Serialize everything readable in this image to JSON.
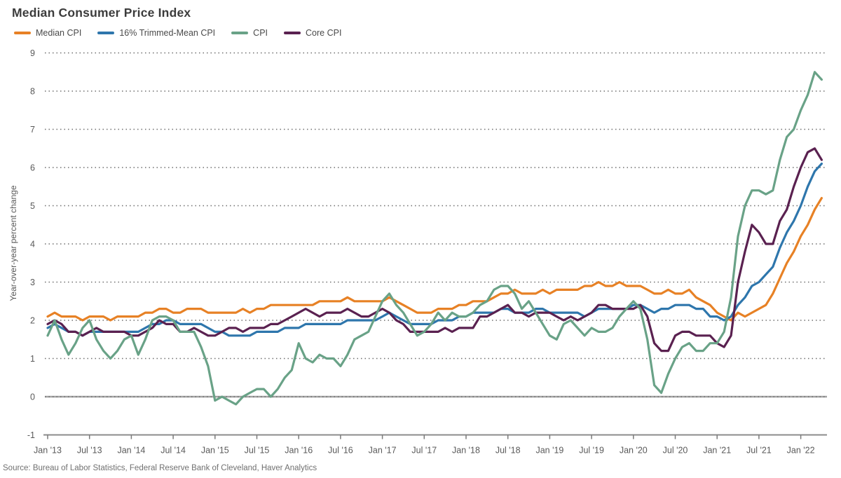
{
  "page": {
    "source": "Source: Bureau of Labor Statistics, Federal Reserve Bank of Cleveland, Haver Analytics"
  },
  "chart_data": {
    "type": "line",
    "title": "Median Consumer Price Index",
    "ylabel": "Year-over-year percent change",
    "xlabel": "",
    "ylim": [
      -1,
      9
    ],
    "y_ticks": [
      -1,
      0,
      1,
      2,
      3,
      4,
      5,
      6,
      7,
      8,
      9
    ],
    "grid": "dotted-horizontal",
    "zero_line": true,
    "legend_position": "top-left",
    "x_unit": "month",
    "x_range": [
      "Jan 2013",
      "Apr 2022"
    ],
    "x_tick_every_n_points": 6,
    "x_tick_labels": [
      "Jan '13",
      "Jul '13",
      "Jan '14",
      "Jul '14",
      "Jan '15",
      "Jul '15",
      "Jan '16",
      "Jul '16",
      "Jan '17",
      "Jul '17",
      "Jan '18",
      "Jul '18",
      "Jan '19",
      "Jul '19",
      "Jan '20",
      "Jul '20",
      "Jan '21",
      "Jul '21",
      "Jan '22"
    ],
    "colors": {
      "title_text": "#3c3c3c",
      "axis_text": "#595959",
      "grid_dots": "#6f6f6f",
      "zero_line": "#a2a2a2",
      "axis_line": "#8c8c8c",
      "source_text": "#707070"
    },
    "draw_order": [
      0,
      1,
      3,
      2
    ],
    "series": [
      {
        "name": "Median CPI",
        "color": "#E78125",
        "values": [
          2.1,
          2.2,
          2.1,
          2.1,
          2.1,
          2.0,
          2.1,
          2.1,
          2.1,
          2.0,
          2.1,
          2.1,
          2.1,
          2.1,
          2.2,
          2.2,
          2.3,
          2.3,
          2.2,
          2.2,
          2.3,
          2.3,
          2.3,
          2.2,
          2.2,
          2.2,
          2.2,
          2.2,
          2.3,
          2.2,
          2.3,
          2.3,
          2.4,
          2.4,
          2.4,
          2.4,
          2.4,
          2.4,
          2.4,
          2.5,
          2.5,
          2.5,
          2.5,
          2.6,
          2.5,
          2.5,
          2.5,
          2.5,
          2.5,
          2.6,
          2.5,
          2.4,
          2.3,
          2.2,
          2.2,
          2.2,
          2.3,
          2.3,
          2.3,
          2.4,
          2.4,
          2.5,
          2.5,
          2.5,
          2.6,
          2.7,
          2.7,
          2.8,
          2.7,
          2.7,
          2.7,
          2.8,
          2.7,
          2.8,
          2.8,
          2.8,
          2.8,
          2.9,
          2.9,
          3.0,
          2.9,
          2.9,
          3.0,
          2.9,
          2.9,
          2.9,
          2.8,
          2.7,
          2.7,
          2.8,
          2.7,
          2.7,
          2.8,
          2.6,
          2.5,
          2.4,
          2.2,
          2.1,
          2.0,
          2.2,
          2.1,
          2.2,
          2.3,
          2.4,
          2.7,
          3.1,
          3.5,
          3.8,
          4.2,
          4.5,
          4.9,
          5.2
        ]
      },
      {
        "name": "16% Trimmed-Mean CPI",
        "color": "#2E76AC",
        "values": [
          1.8,
          1.9,
          1.8,
          1.7,
          1.7,
          1.6,
          1.7,
          1.7,
          1.7,
          1.7,
          1.7,
          1.7,
          1.7,
          1.7,
          1.8,
          1.9,
          1.9,
          2.0,
          2.0,
          1.9,
          1.9,
          1.9,
          1.9,
          1.8,
          1.7,
          1.7,
          1.6,
          1.6,
          1.6,
          1.6,
          1.7,
          1.7,
          1.7,
          1.7,
          1.8,
          1.8,
          1.8,
          1.9,
          1.9,
          1.9,
          1.9,
          1.9,
          1.9,
          2.0,
          2.0,
          2.0,
          2.0,
          2.0,
          2.1,
          2.2,
          2.1,
          2.0,
          1.9,
          1.9,
          1.9,
          1.9,
          2.0,
          2.0,
          2.0,
          2.1,
          2.1,
          2.2,
          2.2,
          2.2,
          2.2,
          2.3,
          2.3,
          2.2,
          2.2,
          2.2,
          2.3,
          2.3,
          2.2,
          2.2,
          2.2,
          2.2,
          2.2,
          2.1,
          2.2,
          2.3,
          2.3,
          2.3,
          2.3,
          2.3,
          2.4,
          2.4,
          2.3,
          2.2,
          2.3,
          2.3,
          2.4,
          2.4,
          2.4,
          2.3,
          2.3,
          2.1,
          2.1,
          2.0,
          2.1,
          2.4,
          2.6,
          2.9,
          3.0,
          3.2,
          3.4,
          3.9,
          4.3,
          4.6,
          5.0,
          5.5,
          5.9,
          6.1
        ]
      },
      {
        "name": "CPI",
        "color": "#69A287",
        "values": [
          1.6,
          2.0,
          1.5,
          1.1,
          1.4,
          1.8,
          2.0,
          1.5,
          1.2,
          1.0,
          1.2,
          1.5,
          1.6,
          1.1,
          1.5,
          2.0,
          2.1,
          2.1,
          2.0,
          1.7,
          1.7,
          1.7,
          1.3,
          0.8,
          -0.1,
          0.0,
          -0.1,
          -0.2,
          0.0,
          0.1,
          0.2,
          0.2,
          0.0,
          0.2,
          0.5,
          0.7,
          1.4,
          1.0,
          0.9,
          1.1,
          1.0,
          1.0,
          0.8,
          1.1,
          1.5,
          1.6,
          1.7,
          2.1,
          2.5,
          2.7,
          2.4,
          2.2,
          1.9,
          1.6,
          1.7,
          1.9,
          2.2,
          2.0,
          2.2,
          2.1,
          2.1,
          2.2,
          2.4,
          2.5,
          2.8,
          2.9,
          2.9,
          2.7,
          2.3,
          2.5,
          2.2,
          1.9,
          1.6,
          1.5,
          1.9,
          2.0,
          1.8,
          1.6,
          1.8,
          1.7,
          1.7,
          1.8,
          2.1,
          2.3,
          2.5,
          2.3,
          1.5,
          0.3,
          0.1,
          0.6,
          1.0,
          1.3,
          1.4,
          1.2,
          1.2,
          1.4,
          1.4,
          1.7,
          2.6,
          4.2,
          5.0,
          5.4,
          5.4,
          5.3,
          5.4,
          6.2,
          6.8,
          7.0,
          7.5,
          7.9,
          8.5,
          8.3
        ]
      },
      {
        "name": "Core CPI",
        "color": "#5A2150",
        "values": [
          1.9,
          2.0,
          1.9,
          1.7,
          1.7,
          1.6,
          1.7,
          1.8,
          1.7,
          1.7,
          1.7,
          1.7,
          1.6,
          1.6,
          1.7,
          1.8,
          2.0,
          1.9,
          1.9,
          1.7,
          1.7,
          1.8,
          1.7,
          1.6,
          1.6,
          1.7,
          1.8,
          1.8,
          1.7,
          1.8,
          1.8,
          1.8,
          1.9,
          1.9,
          2.0,
          2.1,
          2.2,
          2.3,
          2.2,
          2.1,
          2.2,
          2.2,
          2.2,
          2.3,
          2.2,
          2.1,
          2.1,
          2.2,
          2.3,
          2.2,
          2.0,
          1.9,
          1.7,
          1.7,
          1.7,
          1.7,
          1.7,
          1.8,
          1.7,
          1.8,
          1.8,
          1.8,
          2.1,
          2.1,
          2.2,
          2.3,
          2.4,
          2.2,
          2.2,
          2.1,
          2.2,
          2.2,
          2.2,
          2.1,
          2.0,
          2.1,
          2.0,
          2.1,
          2.2,
          2.4,
          2.4,
          2.3,
          2.3,
          2.3,
          2.3,
          2.4,
          2.1,
          1.4,
          1.2,
          1.2,
          1.6,
          1.7,
          1.7,
          1.6,
          1.6,
          1.6,
          1.4,
          1.3,
          1.6,
          3.0,
          3.8,
          4.5,
          4.3,
          4.0,
          4.0,
          4.6,
          4.9,
          5.5,
          6.0,
          6.4,
          6.5,
          6.2
        ]
      }
    ]
  }
}
